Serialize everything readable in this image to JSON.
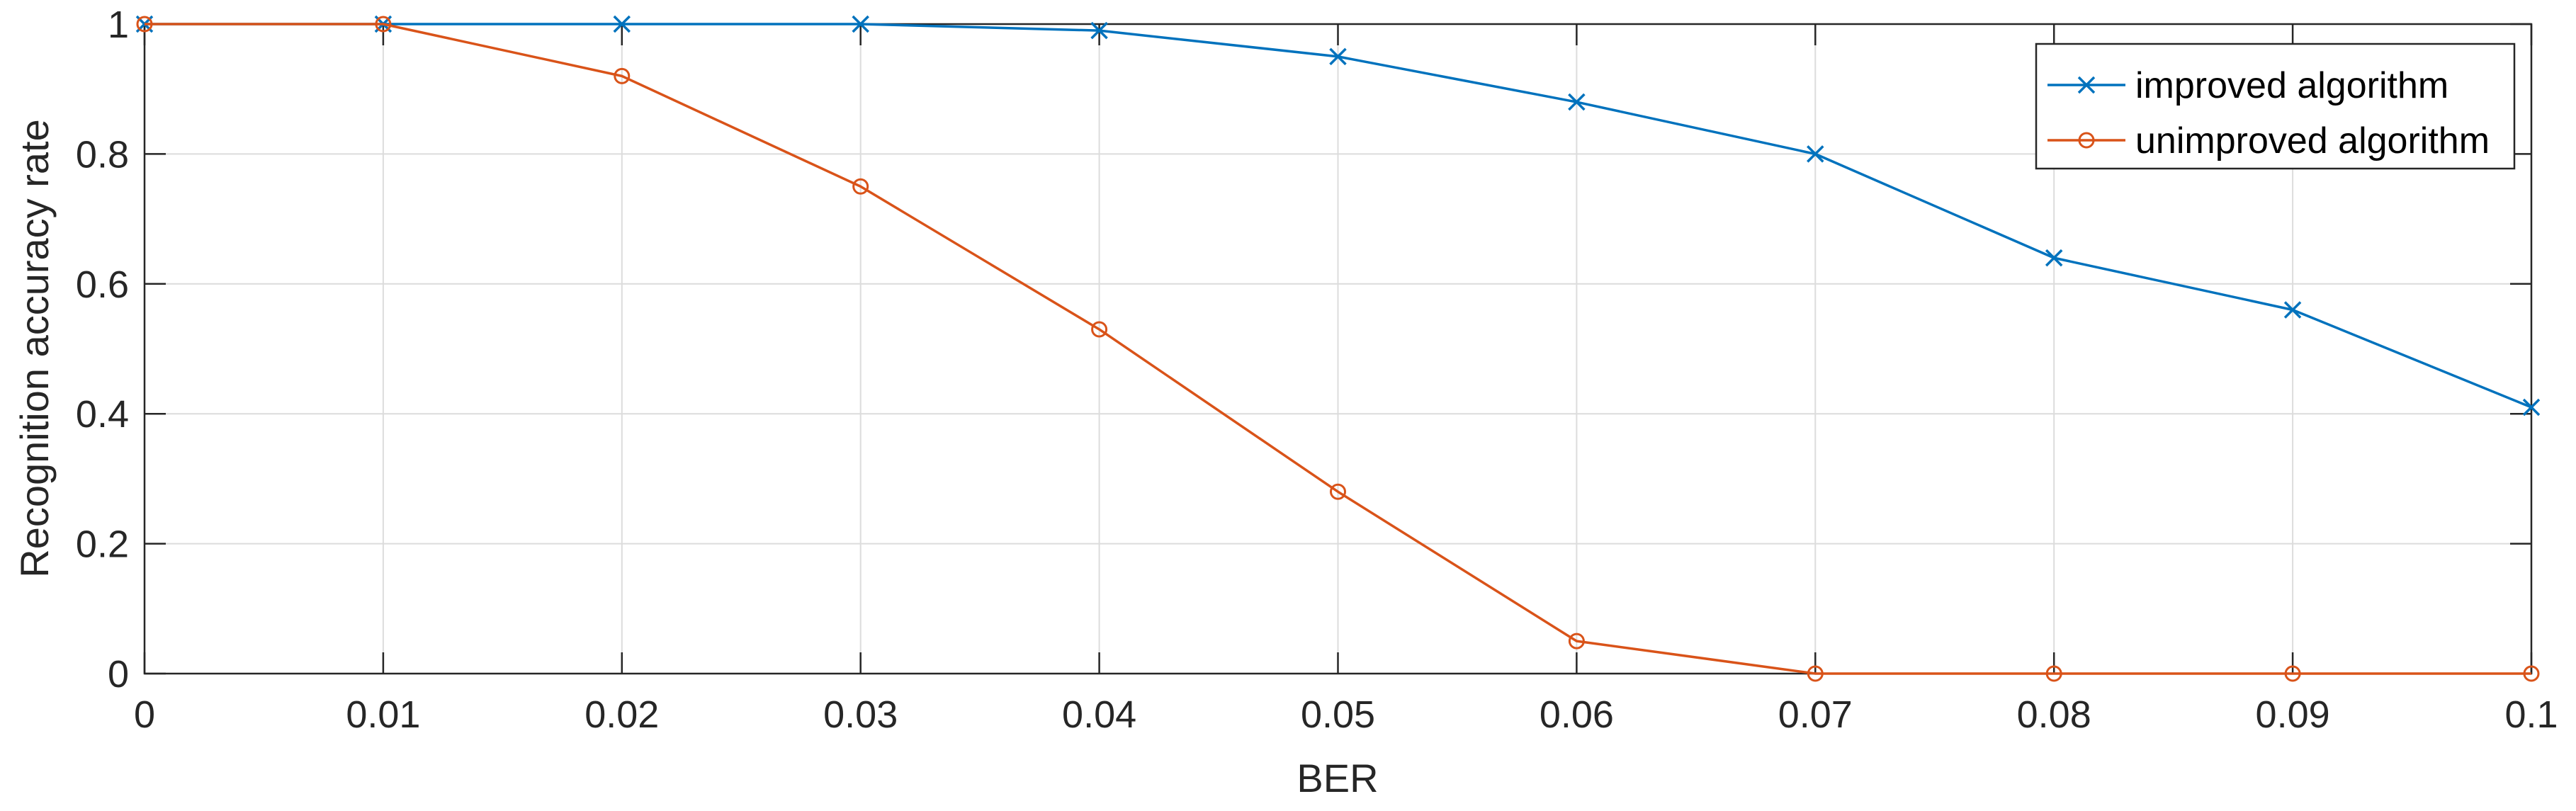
{
  "chart_data": {
    "type": "line",
    "title": "",
    "xlabel": "BER",
    "ylabel": "Recognition accuracy rate",
    "x": [
      0,
      0.01,
      0.02,
      0.03,
      0.04,
      0.05,
      0.06,
      0.07,
      0.08,
      0.09,
      0.1
    ],
    "xlim": [
      0,
      0.1
    ],
    "ylim": [
      0,
      1
    ],
    "xticks": [
      "0",
      "0.01",
      "0.02",
      "0.03",
      "0.04",
      "0.05",
      "0.06",
      "0.07",
      "0.08",
      "0.09",
      "0.1"
    ],
    "yticks": [
      "0",
      "0.2",
      "0.4",
      "0.6",
      "0.8",
      "1"
    ],
    "grid": true,
    "legend_position": "top-right",
    "series": [
      {
        "name": "improved algorithm",
        "color": "#0072BD",
        "marker": "x",
        "values": [
          1,
          1,
          1,
          1,
          0.99,
          0.95,
          0.88,
          0.8,
          0.64,
          0.56,
          0.41
        ]
      },
      {
        "name": "unimproved algorithm",
        "color": "#D95319",
        "marker": "o",
        "values": [
          1,
          1,
          0.92,
          0.75,
          0.53,
          0.28,
          0.05,
          0,
          0,
          0,
          0
        ]
      }
    ]
  }
}
